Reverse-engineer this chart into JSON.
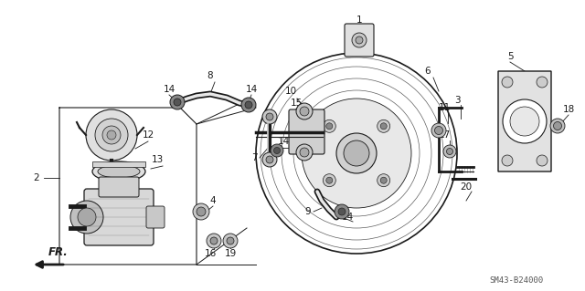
{
  "background_color": "#ffffff",
  "line_color": "#1a1a1a",
  "catalog_num": "SM43-B24000",
  "figsize": [
    6.4,
    3.19
  ],
  "dpi": 100
}
